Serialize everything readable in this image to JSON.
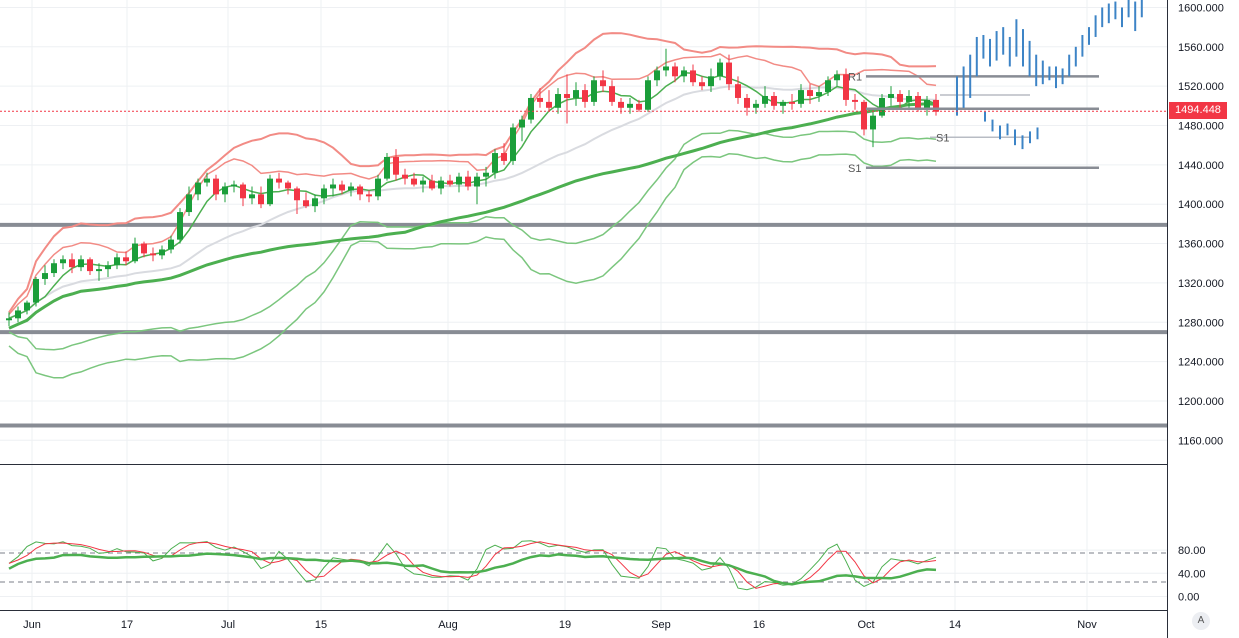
{
  "chart_data": [
    {
      "type": "candlestick",
      "title": "",
      "ylim": [
        1140,
        1610
      ],
      "y_ticks": [
        "1160.000",
        "1200.000",
        "1240.000",
        "1280.000",
        "1320.000",
        "1360.000",
        "1400.000",
        "1440.000",
        "1480.000",
        "1520.000",
        "1560.000",
        "1600.000"
      ],
      "x_ticks": [
        "Jun",
        "17",
        "Jul",
        "15",
        "Aug",
        "19",
        "Sep",
        "16",
        "Oct",
        "14",
        "Nov"
      ],
      "last_price": "1494.448",
      "ohlc": [
        [
          1282,
          1290,
          1276,
          1284
        ],
        [
          1284,
          1296,
          1280,
          1292
        ],
        [
          1292,
          1302,
          1288,
          1300
        ],
        [
          1300,
          1326,
          1296,
          1324
        ],
        [
          1324,
          1338,
          1318,
          1330
        ],
        [
          1330,
          1344,
          1326,
          1340
        ],
        [
          1340,
          1348,
          1334,
          1344
        ],
        [
          1344,
          1350,
          1330,
          1336
        ],
        [
          1336,
          1348,
          1332,
          1344
        ],
        [
          1344,
          1346,
          1328,
          1332
        ],
        [
          1332,
          1340,
          1322,
          1334
        ],
        [
          1334,
          1342,
          1326,
          1338
        ],
        [
          1338,
          1350,
          1334,
          1346
        ],
        [
          1346,
          1352,
          1338,
          1342
        ],
        [
          1342,
          1366,
          1340,
          1360
        ],
        [
          1360,
          1362,
          1346,
          1350
        ],
        [
          1350,
          1356,
          1342,
          1348
        ],
        [
          1348,
          1358,
          1344,
          1354
        ],
        [
          1354,
          1368,
          1350,
          1364
        ],
        [
          1364,
          1396,
          1360,
          1392
        ],
        [
          1392,
          1418,
          1388,
          1410
        ],
        [
          1410,
          1426,
          1404,
          1422
        ],
        [
          1422,
          1432,
          1418,
          1426
        ],
        [
          1426,
          1430,
          1404,
          1410
        ],
        [
          1410,
          1422,
          1402,
          1418
        ],
        [
          1418,
          1424,
          1412,
          1420
        ],
        [
          1420,
          1422,
          1398,
          1406
        ],
        [
          1406,
          1418,
          1400,
          1410
        ],
        [
          1410,
          1418,
          1396,
          1400
        ],
        [
          1400,
          1430,
          1398,
          1426
        ],
        [
          1426,
          1432,
          1416,
          1422
        ],
        [
          1422,
          1424,
          1410,
          1416
        ],
        [
          1416,
          1418,
          1390,
          1404
        ],
        [
          1404,
          1412,
          1396,
          1398
        ],
        [
          1398,
          1410,
          1392,
          1406
        ],
        [
          1406,
          1420,
          1400,
          1416
        ],
        [
          1416,
          1426,
          1408,
          1420
        ],
        [
          1420,
          1424,
          1410,
          1414
        ],
        [
          1414,
          1422,
          1408,
          1418
        ],
        [
          1418,
          1420,
          1404,
          1410
        ],
        [
          1410,
          1414,
          1402,
          1408
        ],
        [
          1408,
          1430,
          1404,
          1426
        ],
        [
          1426,
          1452,
          1424,
          1448
        ],
        [
          1448,
          1456,
          1424,
          1430
        ],
        [
          1430,
          1436,
          1420,
          1426
        ],
        [
          1426,
          1432,
          1418,
          1420
        ],
        [
          1420,
          1428,
          1412,
          1424
        ],
        [
          1424,
          1430,
          1414,
          1416
        ],
        [
          1416,
          1428,
          1410,
          1424
        ],
        [
          1424,
          1430,
          1418,
          1420
        ],
        [
          1420,
          1432,
          1412,
          1428
        ],
        [
          1428,
          1434,
          1414,
          1418
        ],
        [
          1418,
          1432,
          1400,
          1428
        ],
        [
          1428,
          1438,
          1418,
          1432
        ],
        [
          1432,
          1456,
          1426,
          1452
        ],
        [
          1452,
          1462,
          1440,
          1444
        ],
        [
          1444,
          1482,
          1440,
          1478
        ],
        [
          1478,
          1490,
          1464,
          1486
        ],
        [
          1486,
          1512,
          1482,
          1508
        ],
        [
          1508,
          1518,
          1498,
          1504
        ],
        [
          1504,
          1516,
          1494,
          1498
        ],
        [
          1498,
          1518,
          1492,
          1512
        ],
        [
          1512,
          1532,
          1482,
          1508
        ],
        [
          1508,
          1524,
          1500,
          1516
        ],
        [
          1516,
          1522,
          1498,
          1504
        ],
        [
          1504,
          1530,
          1500,
          1526
        ],
        [
          1526,
          1536,
          1514,
          1520
        ],
        [
          1520,
          1526,
          1500,
          1504
        ],
        [
          1504,
          1508,
          1492,
          1498
        ],
        [
          1498,
          1508,
          1492,
          1502
        ],
        [
          1502,
          1506,
          1494,
          1496
        ],
        [
          1496,
          1530,
          1494,
          1526
        ],
        [
          1526,
          1540,
          1520,
          1536
        ],
        [
          1536,
          1558,
          1530,
          1540
        ],
        [
          1540,
          1544,
          1524,
          1530
        ],
        [
          1530,
          1540,
          1524,
          1536
        ],
        [
          1536,
          1542,
          1520,
          1524
        ],
        [
          1524,
          1530,
          1516,
          1520
        ],
        [
          1520,
          1538,
          1514,
          1530
        ],
        [
          1530,
          1548,
          1526,
          1544
        ],
        [
          1544,
          1552,
          1516,
          1522
        ],
        [
          1522,
          1530,
          1502,
          1508
        ],
        [
          1508,
          1512,
          1490,
          1498
        ],
        [
          1498,
          1506,
          1492,
          1502
        ],
        [
          1502,
          1520,
          1498,
          1510
        ],
        [
          1510,
          1514,
          1496,
          1500
        ],
        [
          1500,
          1506,
          1492,
          1504
        ],
        [
          1504,
          1512,
          1496,
          1502
        ],
        [
          1502,
          1522,
          1498,
          1516
        ],
        [
          1516,
          1522,
          1502,
          1510
        ],
        [
          1510,
          1520,
          1504,
          1514
        ],
        [
          1514,
          1530,
          1510,
          1526
        ],
        [
          1526,
          1536,
          1520,
          1532
        ],
        [
          1532,
          1538,
          1500,
          1506
        ],
        [
          1506,
          1512,
          1496,
          1504
        ],
        [
          1504,
          1506,
          1470,
          1476
        ],
        [
          1476,
          1494,
          1458,
          1490
        ],
        [
          1490,
          1512,
          1488,
          1508
        ],
        [
          1508,
          1520,
          1500,
          1512
        ],
        [
          1512,
          1516,
          1498,
          1504
        ],
        [
          1504,
          1516,
          1498,
          1510
        ],
        [
          1510,
          1514,
          1494,
          1496
        ],
        [
          1496,
          1510,
          1490,
          1506
        ],
        [
          1506,
          1512,
          1490,
          1494
        ]
      ]
    },
    {
      "type": "line",
      "title": "",
      "ylim": [
        -10,
        120
      ],
      "y_ticks": [
        "0.00",
        "40.00",
        "80.00"
      ],
      "x_ticks": [
        "Jun",
        "17",
        "Jul",
        "15",
        "Aug",
        "19",
        "Sep",
        "16",
        "Oct",
        "14",
        "Nov"
      ],
      "levels": [
        75,
        25
      ]
    }
  ],
  "pivot_labels": {
    "r1": "R1",
    "s1": "S1",
    "s1b": "S1"
  },
  "price_tag": "1494.448",
  "scale_mode": "A",
  "colors": {
    "bull": "#1b9e3a",
    "bear": "#f23645",
    "band_red": "#f28b85",
    "band_green": "#7bc67e",
    "ma_thick": "#4caf50",
    "ma_gray": "#d9dbe0",
    "forecast": "#3d84c6",
    "level_gray": "#888c94",
    "price_line": "#f23645"
  }
}
